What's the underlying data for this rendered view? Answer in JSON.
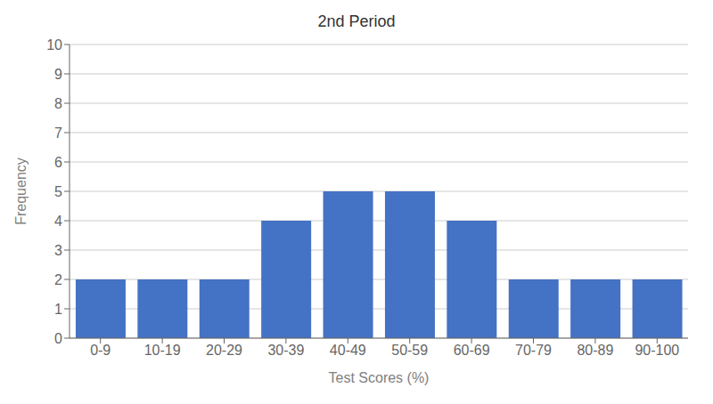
{
  "chart_data": {
    "type": "bar",
    "title": "2nd Period",
    "xlabel": "Test Scores (%)",
    "ylabel": "Frequency",
    "categories": [
      "0-9",
      "10-19",
      "20-29",
      "30-39",
      "40-49",
      "50-59",
      "60-69",
      "70-79",
      "80-89",
      "90-100"
    ],
    "values": [
      2,
      2,
      2,
      4,
      5,
      5,
      4,
      2,
      2,
      2
    ],
    "color": "#4472c4",
    "ylim": [
      0,
      10
    ],
    "yticks": [
      0,
      1,
      2,
      3,
      4,
      5,
      6,
      7,
      8,
      9,
      10
    ],
    "grid": true
  }
}
